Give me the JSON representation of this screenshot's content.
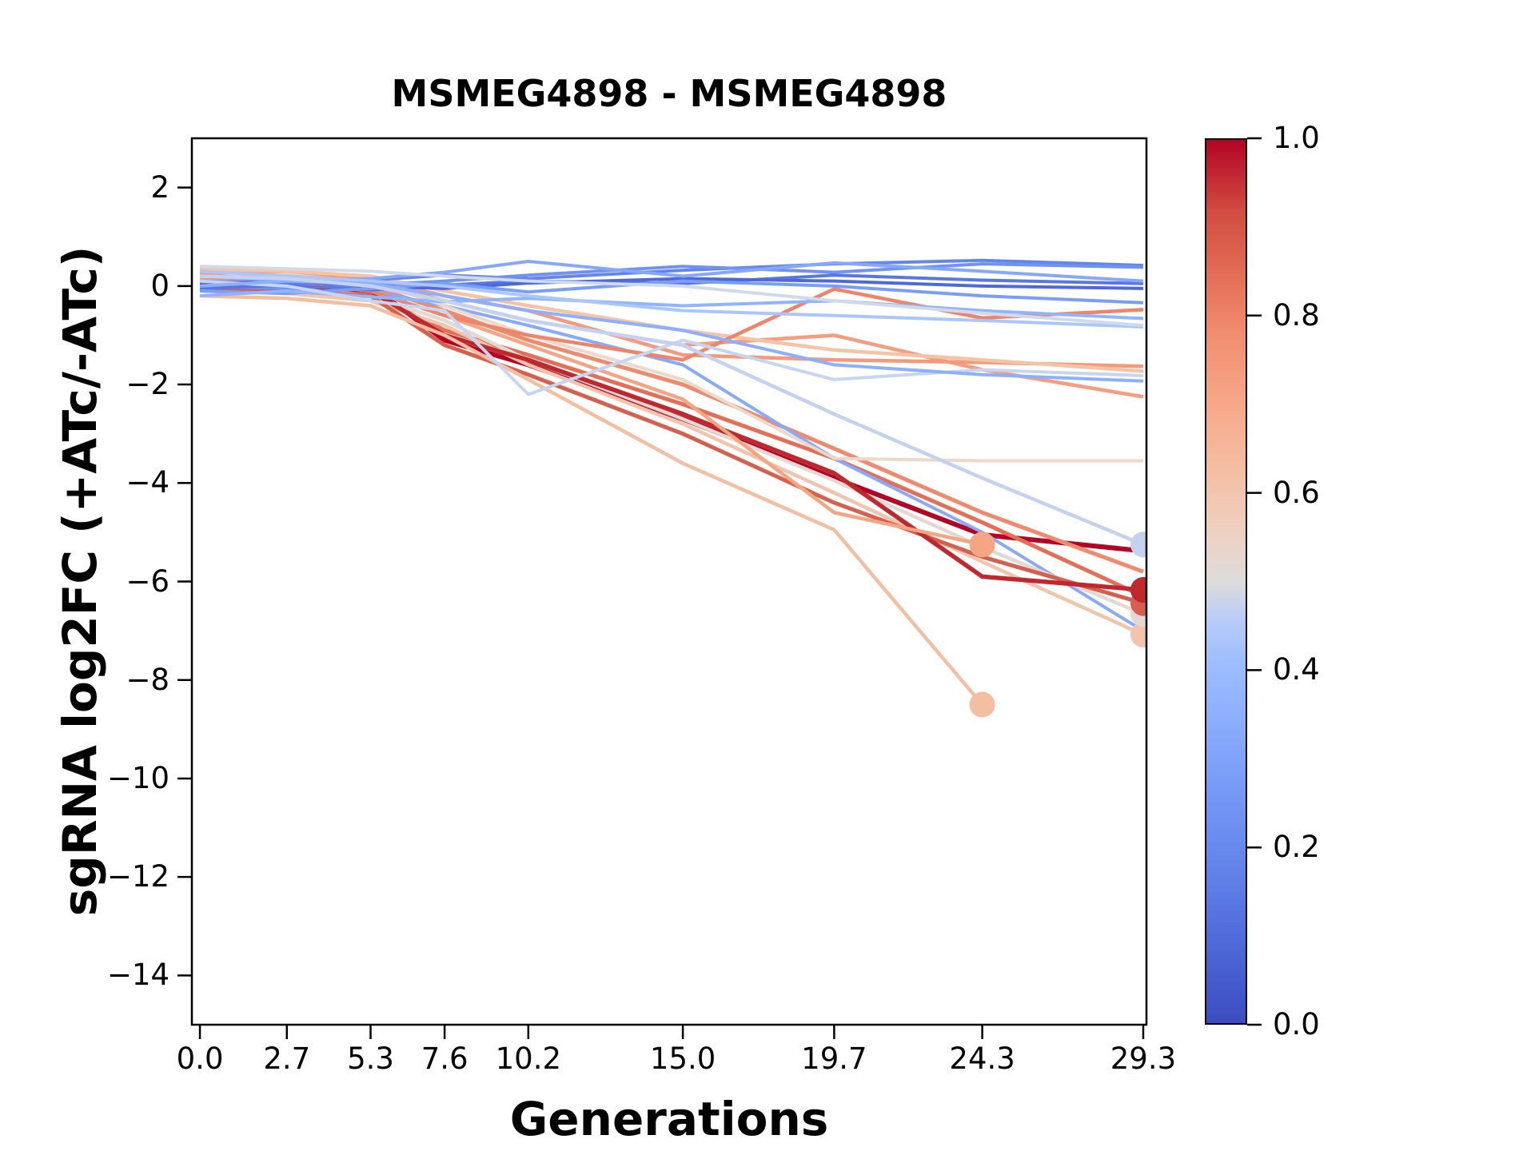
{
  "title": "MSMEG4898 - MSMEG4898",
  "chart_data": {
    "type": "line",
    "title": "MSMEG4898 - MSMEG4898",
    "xlabel": "Generations",
    "ylabel": "sgRNA log2FC (+ATc/-ATc)",
    "xlim": [
      -0.25,
      29.4
    ],
    "ylim": [
      -15,
      3
    ],
    "grid": false,
    "legend": "none",
    "marker_radius": 16,
    "x": [
      0.0,
      2.7,
      5.3,
      7.6,
      10.2,
      15.0,
      19.7,
      24.3,
      29.3
    ],
    "x_tick_labels": [
      "0.0",
      "2.7",
      "5.3",
      "7.6",
      "10.2",
      "15.0",
      "19.7",
      "24.3",
      "29.3"
    ],
    "y_ticks": [
      2,
      0,
      -2,
      -4,
      -6,
      -8,
      -10,
      -12,
      -14
    ],
    "y_tick_labels": [
      "2",
      "0",
      "−2",
      "−4",
      "−6",
      "−8",
      "−10",
      "−12",
      "−14"
    ],
    "series_note": "sgRNA depletion traces colored by colormap value (coolwarm, 0=blue, 1=red); marker_end=true means trace terminates with a filled dot",
    "series": [
      {
        "color": "#b40426",
        "width": 6,
        "marker_end": false,
        "y": [
          0.05,
          0.1,
          0.0,
          -1.1,
          -1.6,
          -2.7,
          -3.9,
          -5.05,
          -5.38
        ]
      },
      {
        "color": "#e46e56",
        "width": 5,
        "marker_end": false,
        "y": [
          0.1,
          0.05,
          -0.15,
          -0.9,
          -1.4,
          -2.4,
          -3.5,
          -4.8,
          -6.3
        ]
      },
      {
        "color": "#f08a6c",
        "width": 5,
        "marker_end": false,
        "y": [
          0.2,
          0.15,
          0.0,
          -0.5,
          -1.1,
          -2.0,
          -3.3,
          -4.6,
          -5.8
        ]
      },
      {
        "color": "#87aafc",
        "width": 4,
        "marker_end": false,
        "y": [
          0.1,
          0.0,
          -0.1,
          -0.4,
          -0.8,
          -1.6,
          -3.5,
          -5.0,
          -7.0
        ]
      },
      {
        "color": "#f2c4ab",
        "width": 4.5,
        "marker_end": true,
        "y": [
          -0.1,
          -0.15,
          -0.3,
          -0.8,
          -1.6,
          -2.8,
          -4.2,
          -5.6,
          -7.08
        ]
      },
      {
        "color": "#e2d9d2",
        "width": 4.5,
        "marker_end": true,
        "y": [
          0.0,
          -0.05,
          -0.2,
          -0.7,
          -1.5,
          -2.7,
          -3.95,
          -5.3,
          -6.66
        ]
      },
      {
        "color": "#d6604d",
        "width": 5,
        "marker_end": true,
        "y": [
          -0.05,
          -0.1,
          -0.2,
          -1.2,
          -1.8,
          -3.0,
          -4.4,
          -5.5,
          -6.44
        ]
      },
      {
        "color": "#c0282d",
        "width": 5.5,
        "marker_end": true,
        "y": [
          0.0,
          0.02,
          -0.1,
          -1.0,
          -1.5,
          -2.6,
          -3.8,
          -5.9,
          -6.17
        ]
      },
      {
        "color": "#f4a582",
        "width": 4.5,
        "marker_end": true,
        "x": [
          0.0,
          2.7,
          5.3,
          7.6,
          10.2,
          15.0,
          19.7,
          24.3
        ],
        "y": [
          0.15,
          0.1,
          -0.1,
          -0.6,
          -1.2,
          -2.3,
          -4.6,
          -5.25
        ]
      },
      {
        "color": "#f3bfa0",
        "width": 4.5,
        "marker_end": true,
        "x": [
          0.0,
          2.7,
          5.3,
          7.6,
          10.2,
          15.0,
          19.7,
          24.3
        ],
        "y": [
          -0.2,
          -0.25,
          -0.4,
          -1.0,
          -1.9,
          -3.6,
          -4.95,
          -8.5
        ]
      },
      {
        "color": "#eed8c9",
        "width": 4,
        "marker_end": false,
        "y": [
          0.3,
          0.25,
          0.1,
          -0.4,
          -1.0,
          -1.9,
          -3.5,
          -3.55,
          -3.55
        ]
      },
      {
        "color": "#f59d7c",
        "width": 4.5,
        "marker_end": false,
        "y": [
          0.15,
          0.2,
          0.1,
          -0.3,
          -0.7,
          -1.2,
          -1.0,
          -1.7,
          -2.25
        ]
      },
      {
        "color": "#f49a7b",
        "width": 4.5,
        "marker_end": false,
        "y": [
          0.25,
          0.3,
          0.15,
          -0.2,
          -0.5,
          -1.4,
          -1.5,
          -1.55,
          -1.63
        ]
      },
      {
        "color": "#f5c3a6",
        "width": 4.5,
        "marker_end": false,
        "y": [
          0.35,
          0.3,
          0.2,
          -0.1,
          -0.4,
          -0.9,
          -1.3,
          -1.5,
          -1.73
        ]
      },
      {
        "color": "#ee8468",
        "width": 4.5,
        "marker_end": false,
        "y": [
          0.2,
          0.1,
          -0.1,
          -0.6,
          -1.0,
          -1.5,
          -0.06,
          -0.65,
          -0.48
        ]
      },
      {
        "color": "#6485ec",
        "width": 4,
        "marker_end": false,
        "y": [
          0.1,
          0.05,
          0.12,
          0.22,
          0.15,
          0.32,
          0.45,
          0.52,
          0.42
        ]
      },
      {
        "color": "#6f92f3",
        "width": 4,
        "marker_end": false,
        "y": [
          0.0,
          -0.05,
          0.02,
          0.1,
          0.22,
          0.4,
          0.28,
          0.45,
          0.38
        ]
      },
      {
        "color": "#5977e3",
        "width": 4,
        "marker_end": false,
        "y": [
          -0.05,
          0.02,
          -0.08,
          0.02,
          0.1,
          0.05,
          0.22,
          0.12,
          0.05
        ]
      },
      {
        "color": "#4f69d9",
        "width": 4,
        "marker_end": false,
        "y": [
          0.05,
          0.1,
          0.0,
          -0.05,
          0.06,
          0.15,
          0.1,
          0.0,
          -0.05
        ]
      },
      {
        "color": "#7a9df8",
        "width": 4,
        "marker_end": false,
        "y": [
          -0.1,
          -0.15,
          -0.05,
          0.05,
          -0.12,
          0.1,
          0.0,
          -0.2,
          -0.34
        ]
      },
      {
        "color": "#85a8fc",
        "width": 4,
        "marker_end": false,
        "y": [
          0.2,
          0.1,
          0.15,
          0.28,
          0.5,
          0.2,
          0.47,
          0.3,
          0.1
        ]
      },
      {
        "color": "#91b4fe",
        "width": 4,
        "marker_end": false,
        "y": [
          -0.2,
          -0.1,
          -0.22,
          -0.32,
          -0.25,
          -0.4,
          -0.3,
          -0.5,
          -0.66
        ]
      },
      {
        "color": "#aac7fd",
        "width": 4,
        "marker_end": false,
        "y": [
          0.3,
          0.2,
          0.1,
          0.0,
          -0.2,
          -0.5,
          -0.6,
          -0.7,
          -0.83
        ]
      },
      {
        "color": "#c6d6f1",
        "width": 4,
        "marker_end": false,
        "y": [
          0.1,
          0.0,
          -0.3,
          -0.5,
          -2.2,
          -1.1,
          -1.9,
          -1.7,
          -1.82
        ]
      },
      {
        "color": "#8caffe",
        "width": 4,
        "marker_end": false,
        "y": [
          0.0,
          0.1,
          0.05,
          -0.2,
          -0.5,
          -0.9,
          -1.6,
          -1.8,
          -1.93
        ]
      },
      {
        "color": "#d1daeb",
        "width": 4,
        "marker_end": false,
        "y": [
          0.4,
          0.35,
          0.3,
          0.2,
          0.1,
          0.0,
          -0.3,
          -0.55,
          -0.8
        ]
      },
      {
        "color": "#c3d2f0",
        "width": 4.5,
        "marker_end": true,
        "y": [
          0.2,
          0.15,
          0.0,
          -0.3,
          -0.7,
          -1.2,
          -2.6,
          -3.9,
          -5.25
        ]
      }
    ],
    "colorbar": {
      "cmap": "coolwarm",
      "range": [
        0.0,
        1.0
      ],
      "tick_values": [
        1.0,
        0.8,
        0.6,
        0.4,
        0.2,
        0.0
      ],
      "tick_labels": [
        "1.0",
        "0.8",
        "0.6",
        "0.4",
        "0.2",
        "0.0"
      ],
      "gradient_stops": [
        {
          "pos": 0,
          "color": "#3b4cc0"
        },
        {
          "pos": 8,
          "color": "#4c66d6"
        },
        {
          "pos": 16,
          "color": "#5f7fe8"
        },
        {
          "pos": 25,
          "color": "#7396f5"
        },
        {
          "pos": 33,
          "color": "#88abfd"
        },
        {
          "pos": 41,
          "color": "#9ebeff"
        },
        {
          "pos": 46,
          "color": "#bccdf7"
        },
        {
          "pos": 50,
          "color": "#dddcdb"
        },
        {
          "pos": 56,
          "color": "#efd0c0"
        },
        {
          "pos": 63,
          "color": "#f5bda1"
        },
        {
          "pos": 70,
          "color": "#f7a889"
        },
        {
          "pos": 78,
          "color": "#f18d6f"
        },
        {
          "pos": 85,
          "color": "#e36c55"
        },
        {
          "pos": 92,
          "color": "#d14b40"
        },
        {
          "pos": 100,
          "color": "#b40426"
        }
      ]
    },
    "axis_color": "#000000",
    "background": "#ffffff"
  }
}
